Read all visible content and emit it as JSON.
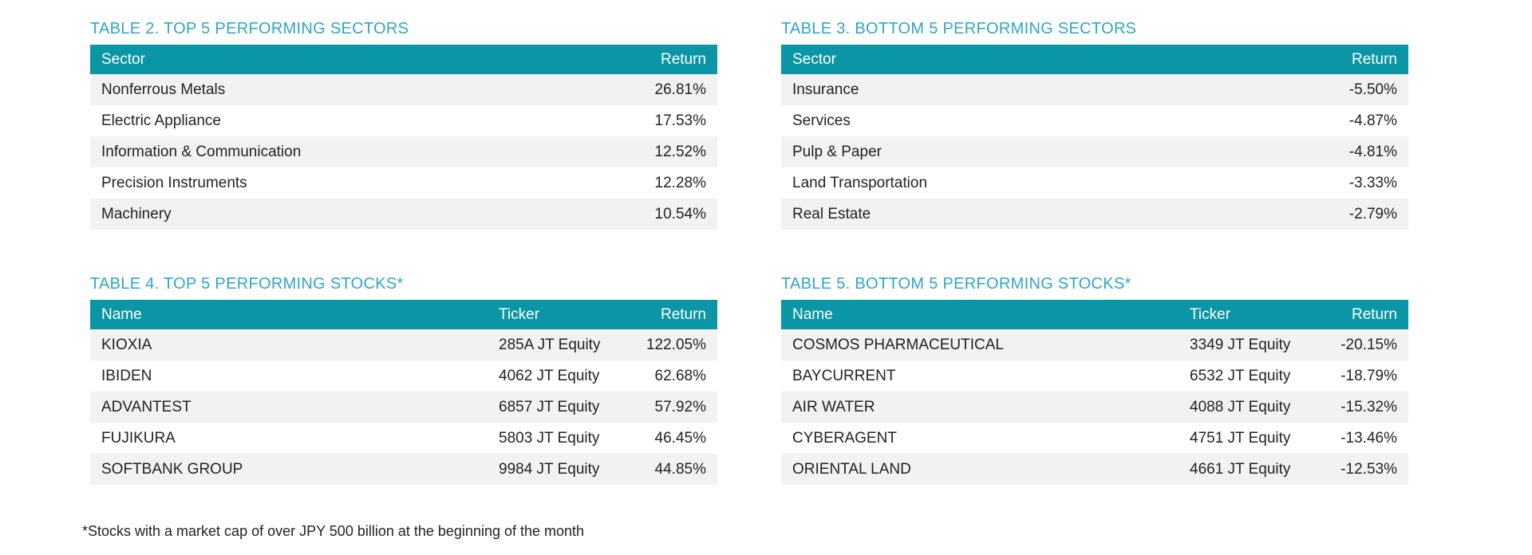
{
  "theme": {
    "header_bg": "#0b96a5",
    "title_color": "#2fa6c8",
    "alt_row_bg": "#f2f2f2",
    "body_text_color": "#232323",
    "header_text_color": "#ffffff"
  },
  "tables": [
    {
      "title": "TABLE 2. TOP 5 PERFORMING SECTORS",
      "columns": [
        "Sector",
        "Return"
      ],
      "rows": [
        [
          "Nonferrous Metals",
          "26.81%"
        ],
        [
          "Electric Appliance",
          "17.53%"
        ],
        [
          "Information & Communication",
          "12.52%"
        ],
        [
          "Precision Instruments",
          "12.28%"
        ],
        [
          "Machinery",
          "10.54%"
        ]
      ]
    },
    {
      "title": "TABLE 3. BOTTOM 5 PERFORMING SECTORS",
      "columns": [
        "Sector",
        "Return"
      ],
      "rows": [
        [
          "Insurance",
          "-5.50%"
        ],
        [
          "Services",
          "-4.87%"
        ],
        [
          "Pulp & Paper",
          "-4.81%"
        ],
        [
          "Land Transportation",
          "-3.33%"
        ],
        [
          "Real Estate",
          "-2.79%"
        ]
      ]
    },
    {
      "title": "TABLE 4. TOP 5 PERFORMING STOCKS*",
      "columns": [
        "Name",
        "Ticker",
        "Return"
      ],
      "rows": [
        [
          "KIOXIA",
          "285A JT Equity",
          "122.05%"
        ],
        [
          "IBIDEN",
          "4062 JT Equity",
          "62.68%"
        ],
        [
          "ADVANTEST",
          "6857 JT Equity",
          "57.92%"
        ],
        [
          "FUJIKURA",
          "5803 JT Equity",
          "46.45%"
        ],
        [
          "SOFTBANK GROUP",
          "9984 JT Equity",
          "44.85%"
        ]
      ]
    },
    {
      "title": "TABLE 5. BOTTOM 5 PERFORMING STOCKS*",
      "columns": [
        "Name",
        "Ticker",
        "Return"
      ],
      "rows": [
        [
          "COSMOS PHARMACEUTICAL",
          "3349 JT Equity",
          "-20.15%"
        ],
        [
          "BAYCURRENT",
          "6532 JT Equity",
          "-18.79%"
        ],
        [
          "AIR WATER",
          "4088 JT Equity",
          "-15.32%"
        ],
        [
          "CYBERAGENT",
          "4751 JT Equity",
          "-13.46%"
        ],
        [
          "ORIENTAL LAND",
          "4661 JT Equity",
          "-12.53%"
        ]
      ]
    }
  ],
  "footnote": "*Stocks with a market cap of over JPY 500 billion at the beginning of the month"
}
